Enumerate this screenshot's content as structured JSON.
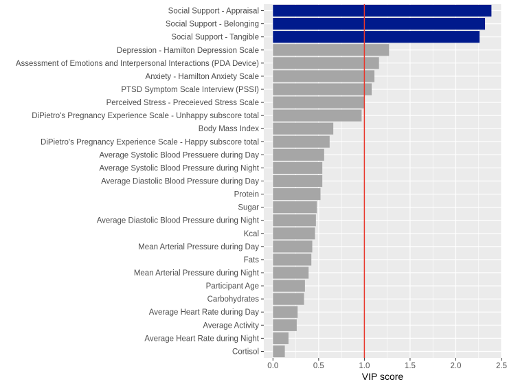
{
  "chart_data": {
    "type": "bar",
    "orientation": "horizontal",
    "title": "",
    "xlabel": "VIP score",
    "ylabel": "",
    "xlim": [
      -0.1,
      2.5
    ],
    "x_ticks": [
      0.0,
      0.5,
      1.0,
      1.5,
      2.0,
      2.5
    ],
    "x_tick_labels": [
      "0.0",
      "0.5",
      "1.0",
      "1.5",
      "2.0",
      "2.5"
    ],
    "grid": true,
    "reference_line": {
      "x": 1.0,
      "color": "#e8372c"
    },
    "highlight_color": "#001a8c",
    "default_color": "#a6a6a6",
    "panel_color": "#ebebeb",
    "categories": [
      "Social Support - Appraisal",
      "Social Support - Belonging",
      "Social Support - Tangible",
      "Depression - Hamilton Depression Scale",
      "Assessment of Emotions and Interpersonal Interactions (PDA Device)",
      "Anxiety - Hamilton Anxiety Scale",
      "PTSD Symptom Scale Interview (PSSI)",
      "Perceived Stress - Preceieved Stress Scale",
      "DiPietro's Pregnancy Experience Scale - Unhappy subscore total",
      "Body Mass Index",
      "DiPietro's Pregnancy Experience Scale - Happy subscore total",
      "Average Systolic Blood Pressuere during Day",
      "Average Systolic Blood Pressure during Night",
      "Average Diastolic Blood Pressure during Day",
      "Protein",
      "Sugar",
      "Average Diastolic Blood Pressure during Night",
      "Kcal",
      "Mean Arterial Pressure during Day",
      "Fats",
      "Mean Arterial Pressure during Night",
      "Participant Age",
      "Carbohydrates",
      "Average Heart Rate during Day",
      "Average Activity",
      "Average Heart Rate during Night",
      "Cortisol"
    ],
    "values": [
      2.39,
      2.32,
      2.26,
      1.27,
      1.16,
      1.11,
      1.08,
      1.0,
      0.97,
      0.66,
      0.62,
      0.56,
      0.54,
      0.54,
      0.52,
      0.48,
      0.47,
      0.46,
      0.43,
      0.42,
      0.39,
      0.35,
      0.34,
      0.27,
      0.26,
      0.17,
      0.13
    ],
    "highlighted": [
      true,
      true,
      true,
      false,
      false,
      false,
      false,
      false,
      false,
      false,
      false,
      false,
      false,
      false,
      false,
      false,
      false,
      false,
      false,
      false,
      false,
      false,
      false,
      false,
      false,
      false,
      false
    ]
  }
}
